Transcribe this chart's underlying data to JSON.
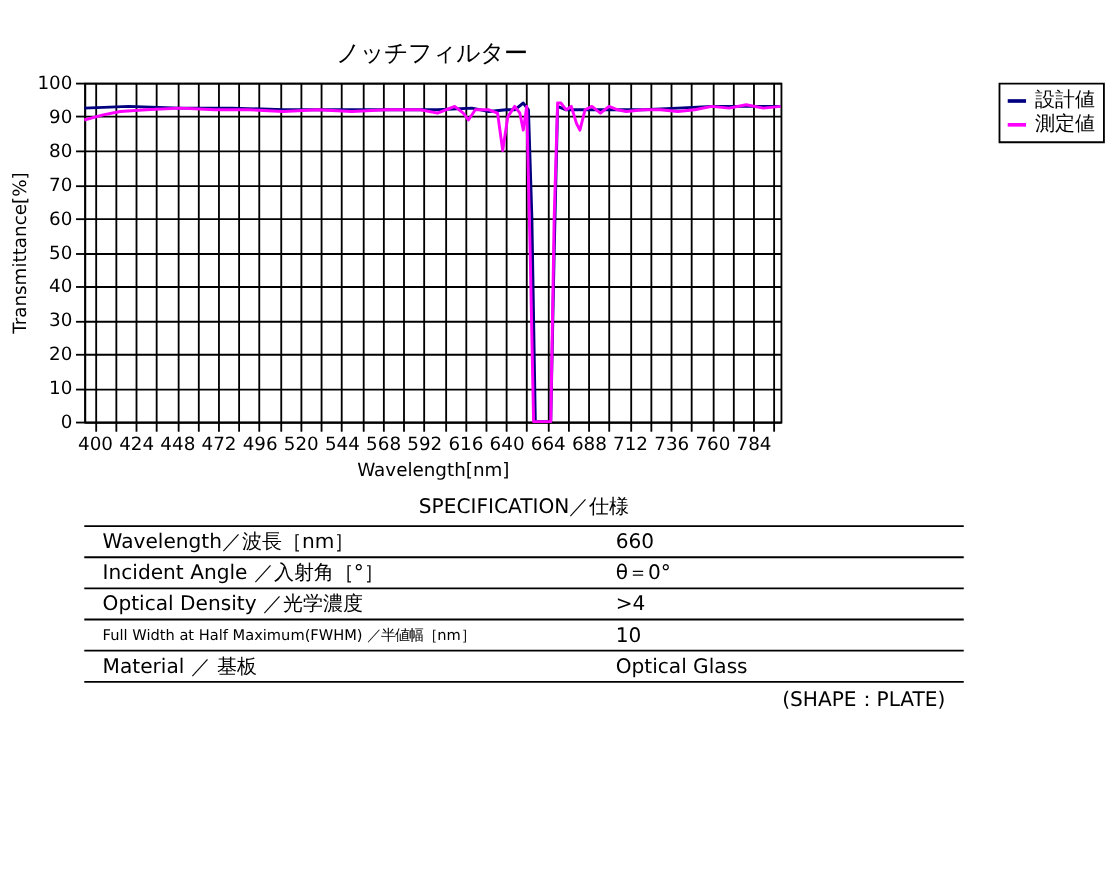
{
  "chart_data": {
    "type": "line",
    "title": "ノッチフィルター",
    "xlabel": "Wavelength[nm]",
    "ylabel": "Transmittance[%]",
    "xlim": [
      394,
      800
    ],
    "ylim": [
      0,
      100
    ],
    "xticks": [
      400,
      {
        "value": 412,
        "label": null
      },
      424,
      {
        "value": 436,
        "label": null
      },
      448,
      {
        "value": 460,
        "label": null
      },
      472,
      {
        "value": 484,
        "label": null
      },
      496,
      {
        "value": 508,
        "label": null
      },
      520,
      {
        "value": 532,
        "label": null
      },
      544,
      {
        "value": 556,
        "label": null
      },
      568,
      {
        "value": 580,
        "label": null
      },
      592,
      {
        "value": 604,
        "label": null
      },
      616,
      {
        "value": 628,
        "label": null
      },
      640,
      {
        "value": 652,
        "label": null
      },
      664,
      {
        "value": 676,
        "label": null
      },
      688,
      {
        "value": 700,
        "label": null
      },
      712,
      {
        "value": 724,
        "label": null
      },
      736,
      {
        "value": 748,
        "label": null
      },
      760,
      {
        "value": 772,
        "label": null
      },
      784,
      {
        "value": 796,
        "label": null
      }
    ],
    "yticks": [
      0,
      10,
      20,
      30,
      40,
      50,
      60,
      70,
      80,
      90,
      100
    ],
    "grid": true,
    "legend": "right",
    "line_style": "solid",
    "marker": "none",
    "series": [
      {
        "name": "設計値",
        "color": "#000080",
        "x": [
          394,
          420,
          450,
          480,
          510,
          540,
          570,
          600,
          620,
          630,
          640,
          645,
          650,
          653,
          655,
          657,
          666,
          668,
          670,
          675,
          680,
          700,
          720,
          740,
          760,
          780,
          800
        ],
        "values": [
          92.5,
          93,
          92.5,
          92.5,
          92,
          92,
          92,
          92,
          92.5,
          91.5,
          92,
          92,
          94,
          92,
          60,
          0,
          0,
          50,
          93,
          92,
          92,
          92,
          92,
          92.5,
          93,
          93,
          93
        ]
      },
      {
        "name": "測定値",
        "color": "#ff00ff",
        "x": [
          394,
          405,
          415,
          430,
          450,
          470,
          490,
          510,
          530,
          550,
          570,
          590,
          600,
          610,
          615,
          618,
          622,
          630,
          635,
          638,
          641,
          645,
          648,
          650,
          652,
          654,
          656,
          666,
          668,
          670,
          672,
          675,
          678,
          681,
          683,
          686,
          690,
          695,
          700,
          705,
          710,
          720,
          730,
          740,
          750,
          760,
          770,
          780,
          790,
          800
        ],
        "values": [
          89,
          90.5,
          91.5,
          92,
          92.5,
          92,
          92,
          91.5,
          92,
          91.5,
          92,
          92,
          91,
          93,
          91,
          89,
          92,
          92,
          91,
          80,
          90,
          93,
          91,
          86,
          93,
          50,
          0,
          0,
          60,
          94,
          94,
          92,
          93,
          88,
          86,
          92,
          93,
          91,
          93,
          92,
          91.5,
          92,
          92,
          91.5,
          92,
          93,
          92.5,
          93.5,
          92.5,
          93
        ]
      }
    ],
    "annotations": [
      "SPECIFICATION／仕様",
      "Wavelength／波長［nm］",
      "660",
      "Incident Angle ／入射角［°］",
      "θ＝0°",
      "Optical Density ／光学濃度",
      ">4",
      "Full Width at Half Maximum(FWHM) ／半値幅［nm］",
      "10",
      "Material ／ 基板",
      "Optical Glass",
      "(SHAPE：PLATE)"
    ]
  }
}
